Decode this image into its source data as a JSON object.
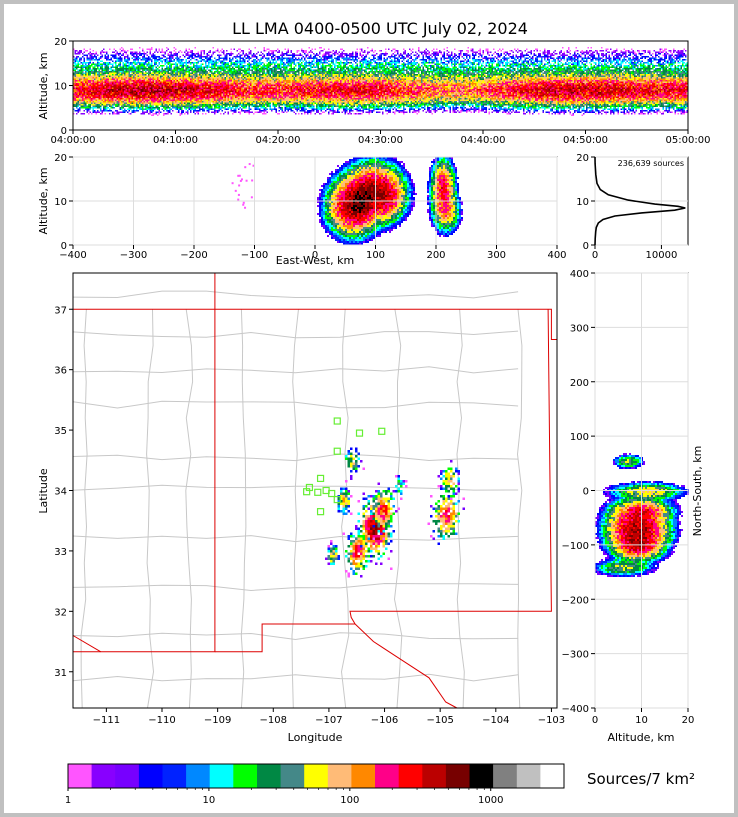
{
  "title": "LL LMA 0400-0500 UTC July 02, 2024",
  "colors": {
    "scale": [
      "#ff55ff",
      "#8800ff",
      "#7700ff",
      "#0000ff",
      "#0022ff",
      "#0088ff",
      "#00ffff",
      "#00ff00",
      "#008844",
      "#448888",
      "#ffff00",
      "#ffbb77",
      "#ff8800",
      "#ff0088",
      "#ff0000",
      "#bb0000",
      "#770000",
      "#000000",
      "#808080",
      "#c0c0c0",
      "#ffffff"
    ],
    "state_line": "#dd0000",
    "county_line": "#c8c8c8",
    "station": "#66ee33"
  },
  "chart_data": [
    {
      "panel": "time-height",
      "type": "heatmap",
      "ylabel": "Altitude, km",
      "ylim": [
        0,
        20
      ],
      "yticks": [
        "0",
        "10",
        "20"
      ],
      "xticks": [
        "04:00:00",
        "04:10:00",
        "04:20:00",
        "04:30:00",
        "04:40:00",
        "04:50:00",
        "05:00:00"
      ]
    },
    {
      "panel": "east-west-height",
      "type": "heatmap",
      "xlabel": "East-West, km",
      "ylabel": "Altitude, km",
      "xlim": [
        -400,
        400
      ],
      "ylim": [
        0,
        20
      ],
      "xticks": [
        "−400",
        "−300",
        "−200",
        "−100",
        "0",
        "100",
        "200",
        "300",
        "400"
      ],
      "yticks": [
        "0",
        "10",
        "20"
      ],
      "cells": [
        {
          "x": 60,
          "z": 9,
          "sx": 25,
          "sz": 4,
          "n": 220
        },
        {
          "x": 75,
          "z": 10,
          "sx": 15,
          "sz": 3,
          "n": 160
        },
        {
          "x": 95,
          "z": 12,
          "sx": 30,
          "sz": 4,
          "n": 260
        },
        {
          "x": 120,
          "z": 11,
          "sx": 15,
          "sz": 3,
          "n": 80
        },
        {
          "x": 210,
          "z": 13,
          "sx": 12,
          "sz": 4,
          "n": 130
        },
        {
          "x": 215,
          "z": 8,
          "sx": 14,
          "sz": 3,
          "n": 60
        }
      ]
    },
    {
      "panel": "altitude-histogram",
      "type": "line",
      "annotation": "236,639 sources",
      "xticks": [
        "0",
        "10000"
      ],
      "yticks": [
        "0",
        "10",
        "20"
      ],
      "xlim": [
        0,
        14000
      ],
      "ylim": [
        0,
        20
      ],
      "points": [
        [
          0,
          20
        ],
        [
          20,
          18.5
        ],
        [
          120,
          16
        ],
        [
          300,
          14
        ],
        [
          800,
          12.6
        ],
        [
          2000,
          11.4
        ],
        [
          5000,
          10.2
        ],
        [
          9000,
          9.3
        ],
        [
          12500,
          8.8
        ],
        [
          13600,
          8.4
        ],
        [
          12000,
          7.9
        ],
        [
          7000,
          7.3
        ],
        [
          3000,
          6.6
        ],
        [
          1200,
          5.8
        ],
        [
          500,
          5
        ],
        [
          200,
          4
        ],
        [
          100,
          3
        ],
        [
          30,
          1.5
        ],
        [
          0,
          0
        ]
      ]
    },
    {
      "panel": "plan-view",
      "type": "heatmap",
      "xlabel": "Longitude",
      "ylabel": "Latitude",
      "xlim": [
        -111.6,
        -102.9
      ],
      "ylim": [
        30.4,
        37.6
      ],
      "xticks": [
        "−111",
        "−110",
        "−109",
        "−108",
        "−107",
        "−106",
        "−105",
        "−104",
        "−103"
      ],
      "yticks": [
        "31",
        "32",
        "33",
        "34",
        "35",
        "36",
        "37"
      ],
      "cells": [
        {
          "lon": -106.2,
          "lat": 33.4,
          "s": 0.13,
          "n": 280
        },
        {
          "lon": -106.05,
          "lat": 33.7,
          "s": 0.1,
          "n": 140
        },
        {
          "lon": -106.5,
          "lat": 33.0,
          "s": 0.1,
          "n": 120
        },
        {
          "lon": -106.75,
          "lat": 33.85,
          "s": 0.06,
          "n": 60
        },
        {
          "lon": -106.95,
          "lat": 32.95,
          "s": 0.05,
          "n": 50
        },
        {
          "lon": -106.6,
          "lat": 34.5,
          "s": 0.07,
          "n": 35
        },
        {
          "lon": -104.9,
          "lat": 33.6,
          "s": 0.12,
          "n": 110
        },
        {
          "lon": -104.85,
          "lat": 34.2,
          "s": 0.08,
          "n": 50
        },
        {
          "lon": -105.75,
          "lat": 34.1,
          "s": 0.05,
          "n": 20
        }
      ],
      "stations": [
        [
          -106.85,
          35.15
        ],
        [
          -106.45,
          34.95
        ],
        [
          -106.05,
          34.98
        ],
        [
          -106.85,
          34.65
        ],
        [
          -107.15,
          34.2
        ],
        [
          -107.35,
          34.05
        ],
        [
          -107.4,
          33.98
        ],
        [
          -107.2,
          33.97
        ],
        [
          -107.05,
          34.0
        ],
        [
          -106.95,
          33.95
        ],
        [
          -107.15,
          33.65
        ],
        [
          -106.85,
          33.85
        ]
      ],
      "state_borders": [
        [
          [
            -111.6,
            37.0
          ],
          [
            -103.0,
            37.0
          ],
          [
            -103.0,
            36.5
          ],
          [
            -102.9,
            36.5
          ]
        ],
        [
          [
            -109.05,
            37.6
          ],
          [
            -109.05,
            31.33
          ],
          [
            -111.6,
            31.33
          ]
        ],
        [
          [
            -109.05,
            31.33
          ],
          [
            -108.2,
            31.33
          ],
          [
            -108.2,
            31.79
          ],
          [
            -106.53,
            31.79
          ]
        ],
        [
          [
            -103.06,
            37.0
          ],
          [
            -103.0,
            32.0
          ],
          [
            -106.62,
            32.0
          ],
          [
            -106.6,
            31.9
          ],
          [
            -106.53,
            31.79
          ]
        ],
        [
          [
            -106.53,
            31.79
          ],
          [
            -106.2,
            31.5
          ],
          [
            -105.7,
            31.2
          ],
          [
            -105.2,
            30.9
          ],
          [
            -104.9,
            30.5
          ],
          [
            -104.7,
            30.4
          ]
        ],
        [
          [
            -111.6,
            31.6
          ],
          [
            -111.1,
            31.33
          ]
        ]
      ]
    },
    {
      "panel": "north-south-height",
      "type": "heatmap",
      "xlabel": "Altitude, km",
      "ylabel": "North-South, km",
      "xlim": [
        0,
        20
      ],
      "ylim": [
        -400,
        400
      ],
      "xticks": [
        "0",
        "10",
        "20"
      ],
      "yticks": [
        "−400",
        "−300",
        "−200",
        "−100",
        "0",
        "100",
        "200",
        "300",
        "400"
      ],
      "cells": [
        {
          "z": 9,
          "y": -70,
          "sz": 4,
          "sy": 30,
          "n": 260
        },
        {
          "z": 9,
          "y": -100,
          "sz": 3,
          "sy": 15,
          "n": 150
        },
        {
          "z": 10,
          "y": -35,
          "sz": 4,
          "sy": 12,
          "n": 90
        },
        {
          "z": 11,
          "y": 0,
          "sz": 5,
          "sy": 10,
          "n": 40
        },
        {
          "z": 7,
          "y": 55,
          "sz": 2,
          "sy": 8,
          "n": 25
        },
        {
          "z": 6,
          "y": -140,
          "sz": 4,
          "sy": 10,
          "n": 25
        }
      ]
    }
  ],
  "colorbar": {
    "ticks": [
      "1",
      "10",
      "100",
      "1000"
    ],
    "label": "Sources/7 km²"
  }
}
